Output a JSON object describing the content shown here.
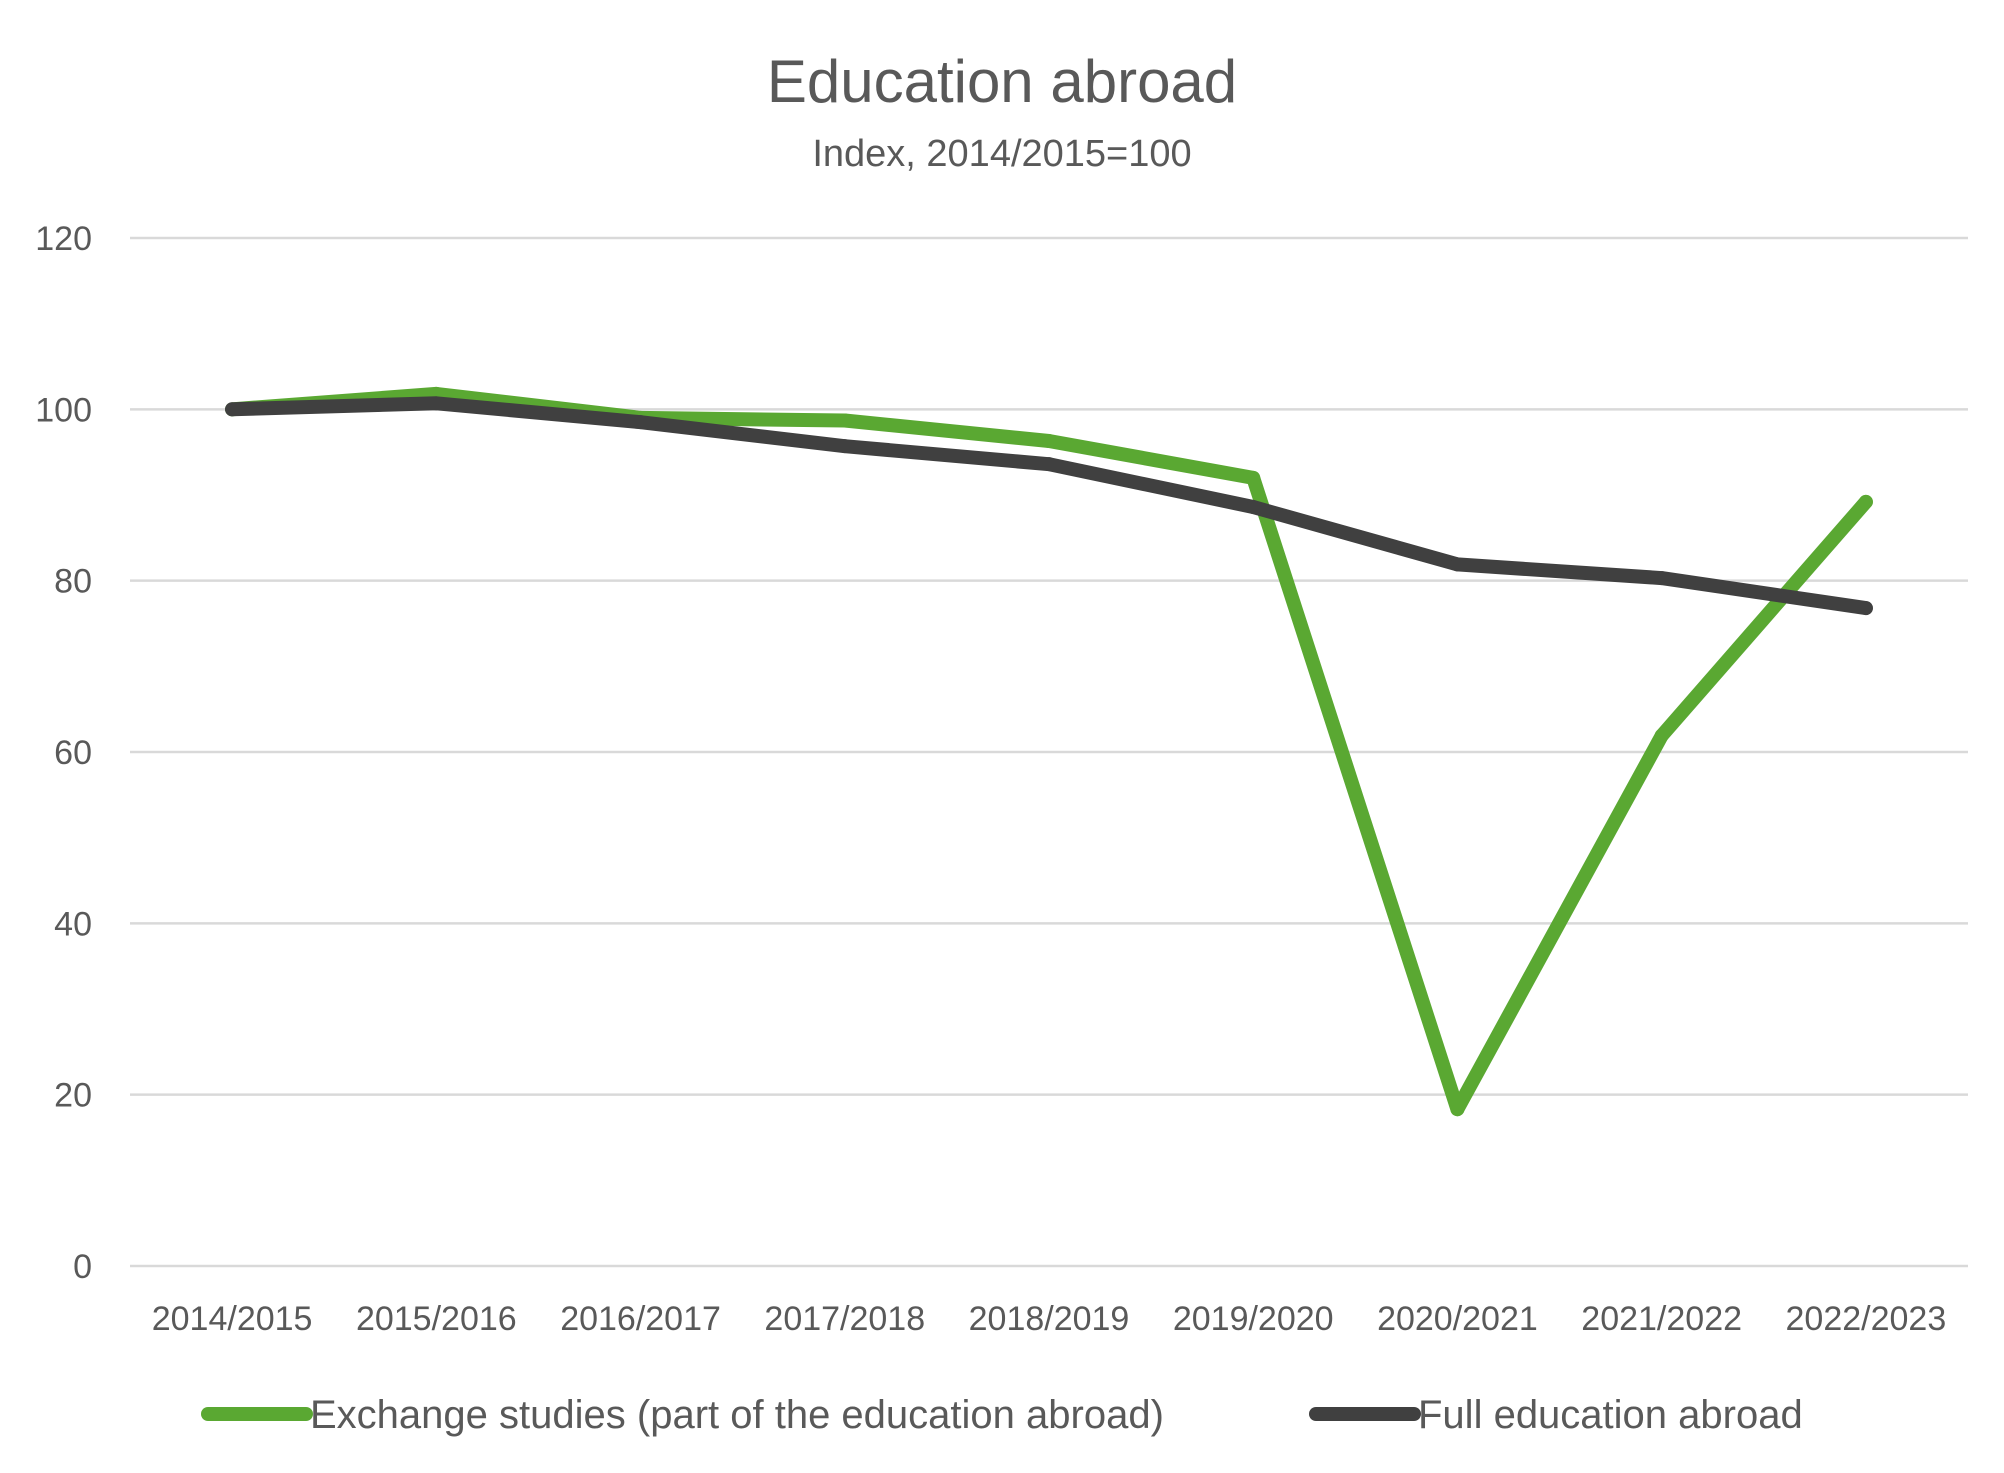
{
  "chart_data": {
    "type": "line",
    "title": "Education abroad",
    "subtitle": "Index, 2014/2015=100",
    "xlabel": "",
    "ylabel": "",
    "categories": [
      "2014/2015",
      "2015/2016",
      "2016/2017",
      "2017/2018",
      "2018/2019",
      "2019/2020",
      "2020/2021",
      "2021/2022",
      "2022/2023"
    ],
    "ylim": [
      0,
      120
    ],
    "yticks": [
      0,
      20,
      40,
      60,
      80,
      100,
      120
    ],
    "grid": true,
    "legend_position": "bottom",
    "series": [
      {
        "name": "Exchange studies (part of the education abroad)",
        "color": "#5aa832",
        "values": [
          100,
          101.8,
          99,
          98.7,
          96.3,
          92,
          18.3,
          61.9,
          89.2
        ]
      },
      {
        "name": "Full education abroad",
        "color": "#404040",
        "values": [
          100,
          100.7,
          98.5,
          95.7,
          93.6,
          88.6,
          81.9,
          80.3,
          76.8
        ]
      }
    ]
  }
}
